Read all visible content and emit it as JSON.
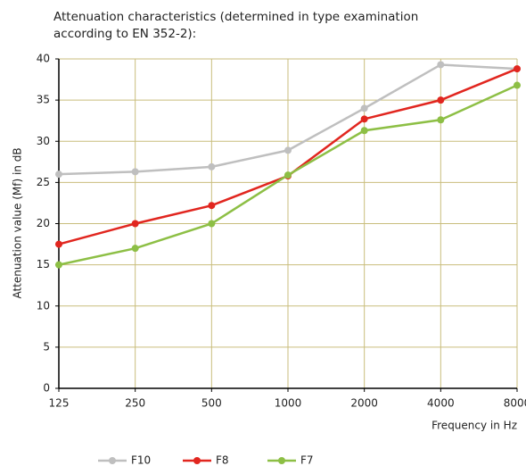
{
  "chart_data": {
    "type": "line",
    "title": [
      "Attenuation characteristics (determined in type examination",
      "according to EN 352-2):"
    ],
    "y_label": "Attenuation value (Mf) in dB",
    "x_label": "Frequency in Hz",
    "categories": [
      "125",
      "250",
      "500",
      "1000",
      "2000",
      "4000",
      "8000"
    ],
    "series": [
      {
        "name": "F10",
        "color": "#bfbfbf",
        "values": [
          26,
          26.3,
          26.9,
          28.9,
          34,
          39.3,
          38.8
        ]
      },
      {
        "name": "F8",
        "color": "#e1261f",
        "values": [
          17.5,
          20,
          22.2,
          25.8,
          32.7,
          35,
          38.8
        ]
      },
      {
        "name": "F7",
        "color": "#8dbf45",
        "values": [
          15,
          17,
          20,
          25.9,
          31.3,
          32.6,
          36.8
        ]
      }
    ],
    "ylim": [
      0,
      40
    ],
    "yticks": [
      0,
      5,
      10,
      15,
      20,
      25,
      30,
      35,
      40
    ],
    "grid": true,
    "grid_color": "#c9bd7c",
    "legend": "bottom"
  }
}
